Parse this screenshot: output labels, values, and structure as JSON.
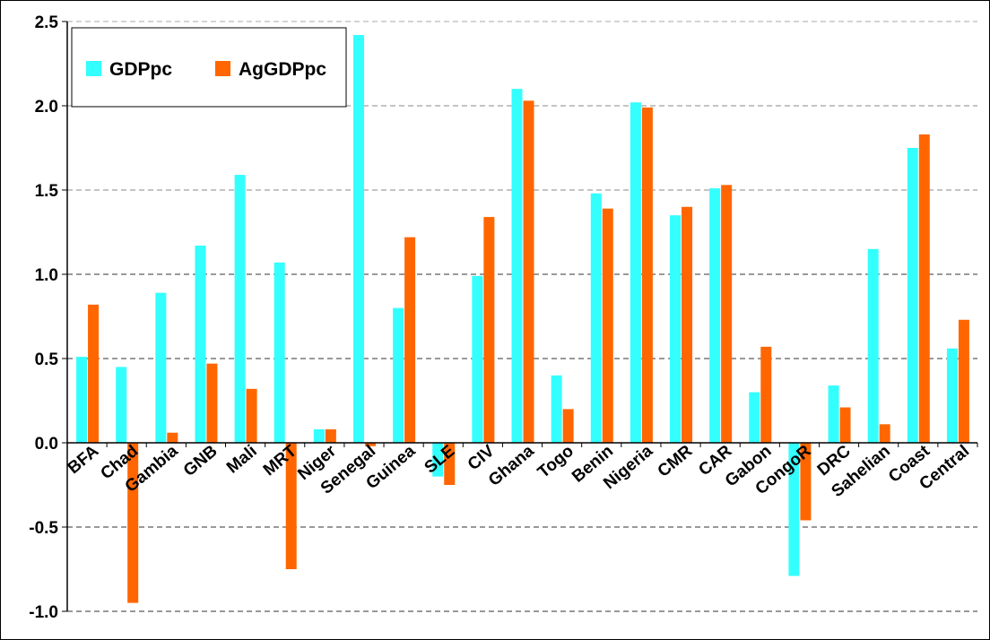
{
  "chart_data": {
    "type": "bar",
    "title": "",
    "xlabel": "",
    "ylabel": "",
    "ylim": [
      -1.0,
      2.5
    ],
    "yticks": [
      2.5,
      2.0,
      1.5,
      1.0,
      0.5,
      0.0,
      -0.5,
      -1.0
    ],
    "ytick_labels": [
      "2.5",
      "2.0",
      "1.5",
      "1.0",
      "0.5",
      "0.0",
      "-0.5",
      "-1.0"
    ],
    "grid": "horizontal dashed",
    "legend_position": "top-left",
    "categories": [
      "BFA",
      "Chad",
      "Gambia",
      "GNB",
      "Mali",
      "MRT",
      "Niger",
      "Senegal",
      "Guinea",
      "SLE",
      "CIV",
      "Ghana",
      "Togo",
      "Benin",
      "Nigeria",
      "CMR",
      "CAR",
      "Gabon",
      "CongoR",
      "DRC",
      "Sahelian",
      "Coast",
      "Central"
    ],
    "series": [
      {
        "name": "GDPpc",
        "color": "#33FFFF",
        "values": [
          0.51,
          0.45,
          0.89,
          1.17,
          1.59,
          1.07,
          0.08,
          2.42,
          0.8,
          -0.2,
          0.99,
          2.1,
          0.4,
          1.48,
          2.02,
          1.35,
          1.51,
          0.3,
          -0.79,
          0.34,
          1.15,
          1.75,
          0.56
        ]
      },
      {
        "name": "AgGDPpc",
        "color": "#FF6600",
        "values": [
          0.82,
          -0.95,
          0.06,
          0.47,
          0.32,
          -0.75,
          0.08,
          -0.02,
          1.22,
          -0.25,
          1.34,
          2.03,
          0.2,
          1.39,
          1.99,
          1.4,
          1.53,
          0.57,
          -0.46,
          0.21,
          0.11,
          1.83,
          0.73
        ]
      }
    ]
  }
}
